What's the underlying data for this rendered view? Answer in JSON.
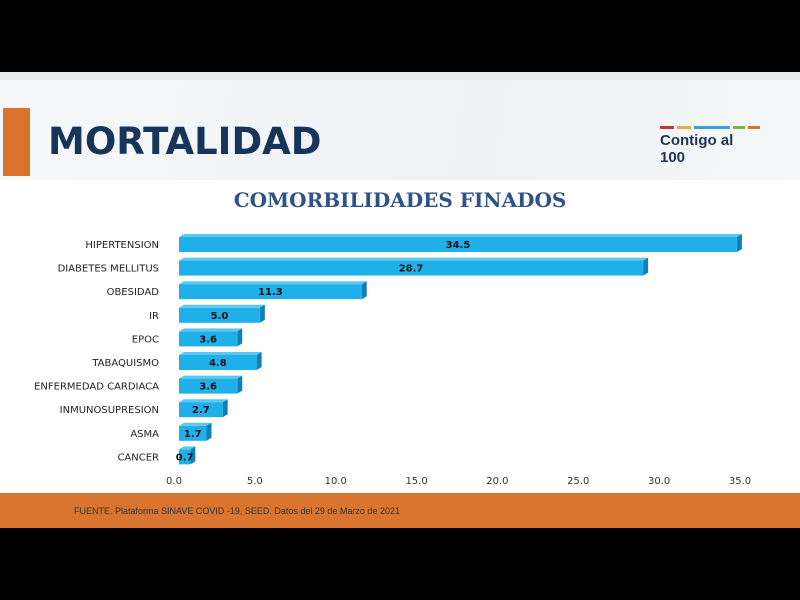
{
  "header": {
    "title": "MORTALIDAD",
    "logo_text": "Contigo al 100",
    "logo_colors": [
      "#b33a3a",
      "#e0b040",
      "#3aa0d8",
      "#7ab840",
      "#d9722a"
    ]
  },
  "footer": {
    "source": "FUENTE. Plataforma SINAVE COVID -19, SEED. Datos del 29 de Marzo de 2021"
  },
  "colors": {
    "accent": "#d9722a",
    "bar": "#1fb0ea",
    "bar_side": "#0f7fb5",
    "title": "#16355a"
  },
  "chart_data": {
    "type": "bar",
    "orientation": "horizontal",
    "title": "COMORBILIDADES FINADOS",
    "categories": [
      "HIPERTENSION",
      "DIABETES MELLITUS",
      "OBESIDAD",
      "IR",
      "EPOC",
      "TABAQUISMO",
      "ENFERMEDAD CARDIACA",
      "INMUNOSUPRESION",
      "ASMA",
      "CANCER"
    ],
    "values": [
      34.5,
      28.7,
      11.3,
      5.0,
      3.6,
      4.8,
      3.6,
      2.7,
      1.7,
      0.7
    ],
    "data_labels": [
      "34.5",
      "28.7",
      "11.3",
      "5.0",
      "3.6",
      "4.8",
      "3.6",
      "2.7",
      "1.7",
      "0.7"
    ],
    "xlim": [
      0,
      35
    ],
    "xticks": [
      "0.0",
      "5.0",
      "10.0",
      "15.0",
      "20.0",
      "25.0",
      "30.0",
      "35.0"
    ],
    "grid": false
  }
}
